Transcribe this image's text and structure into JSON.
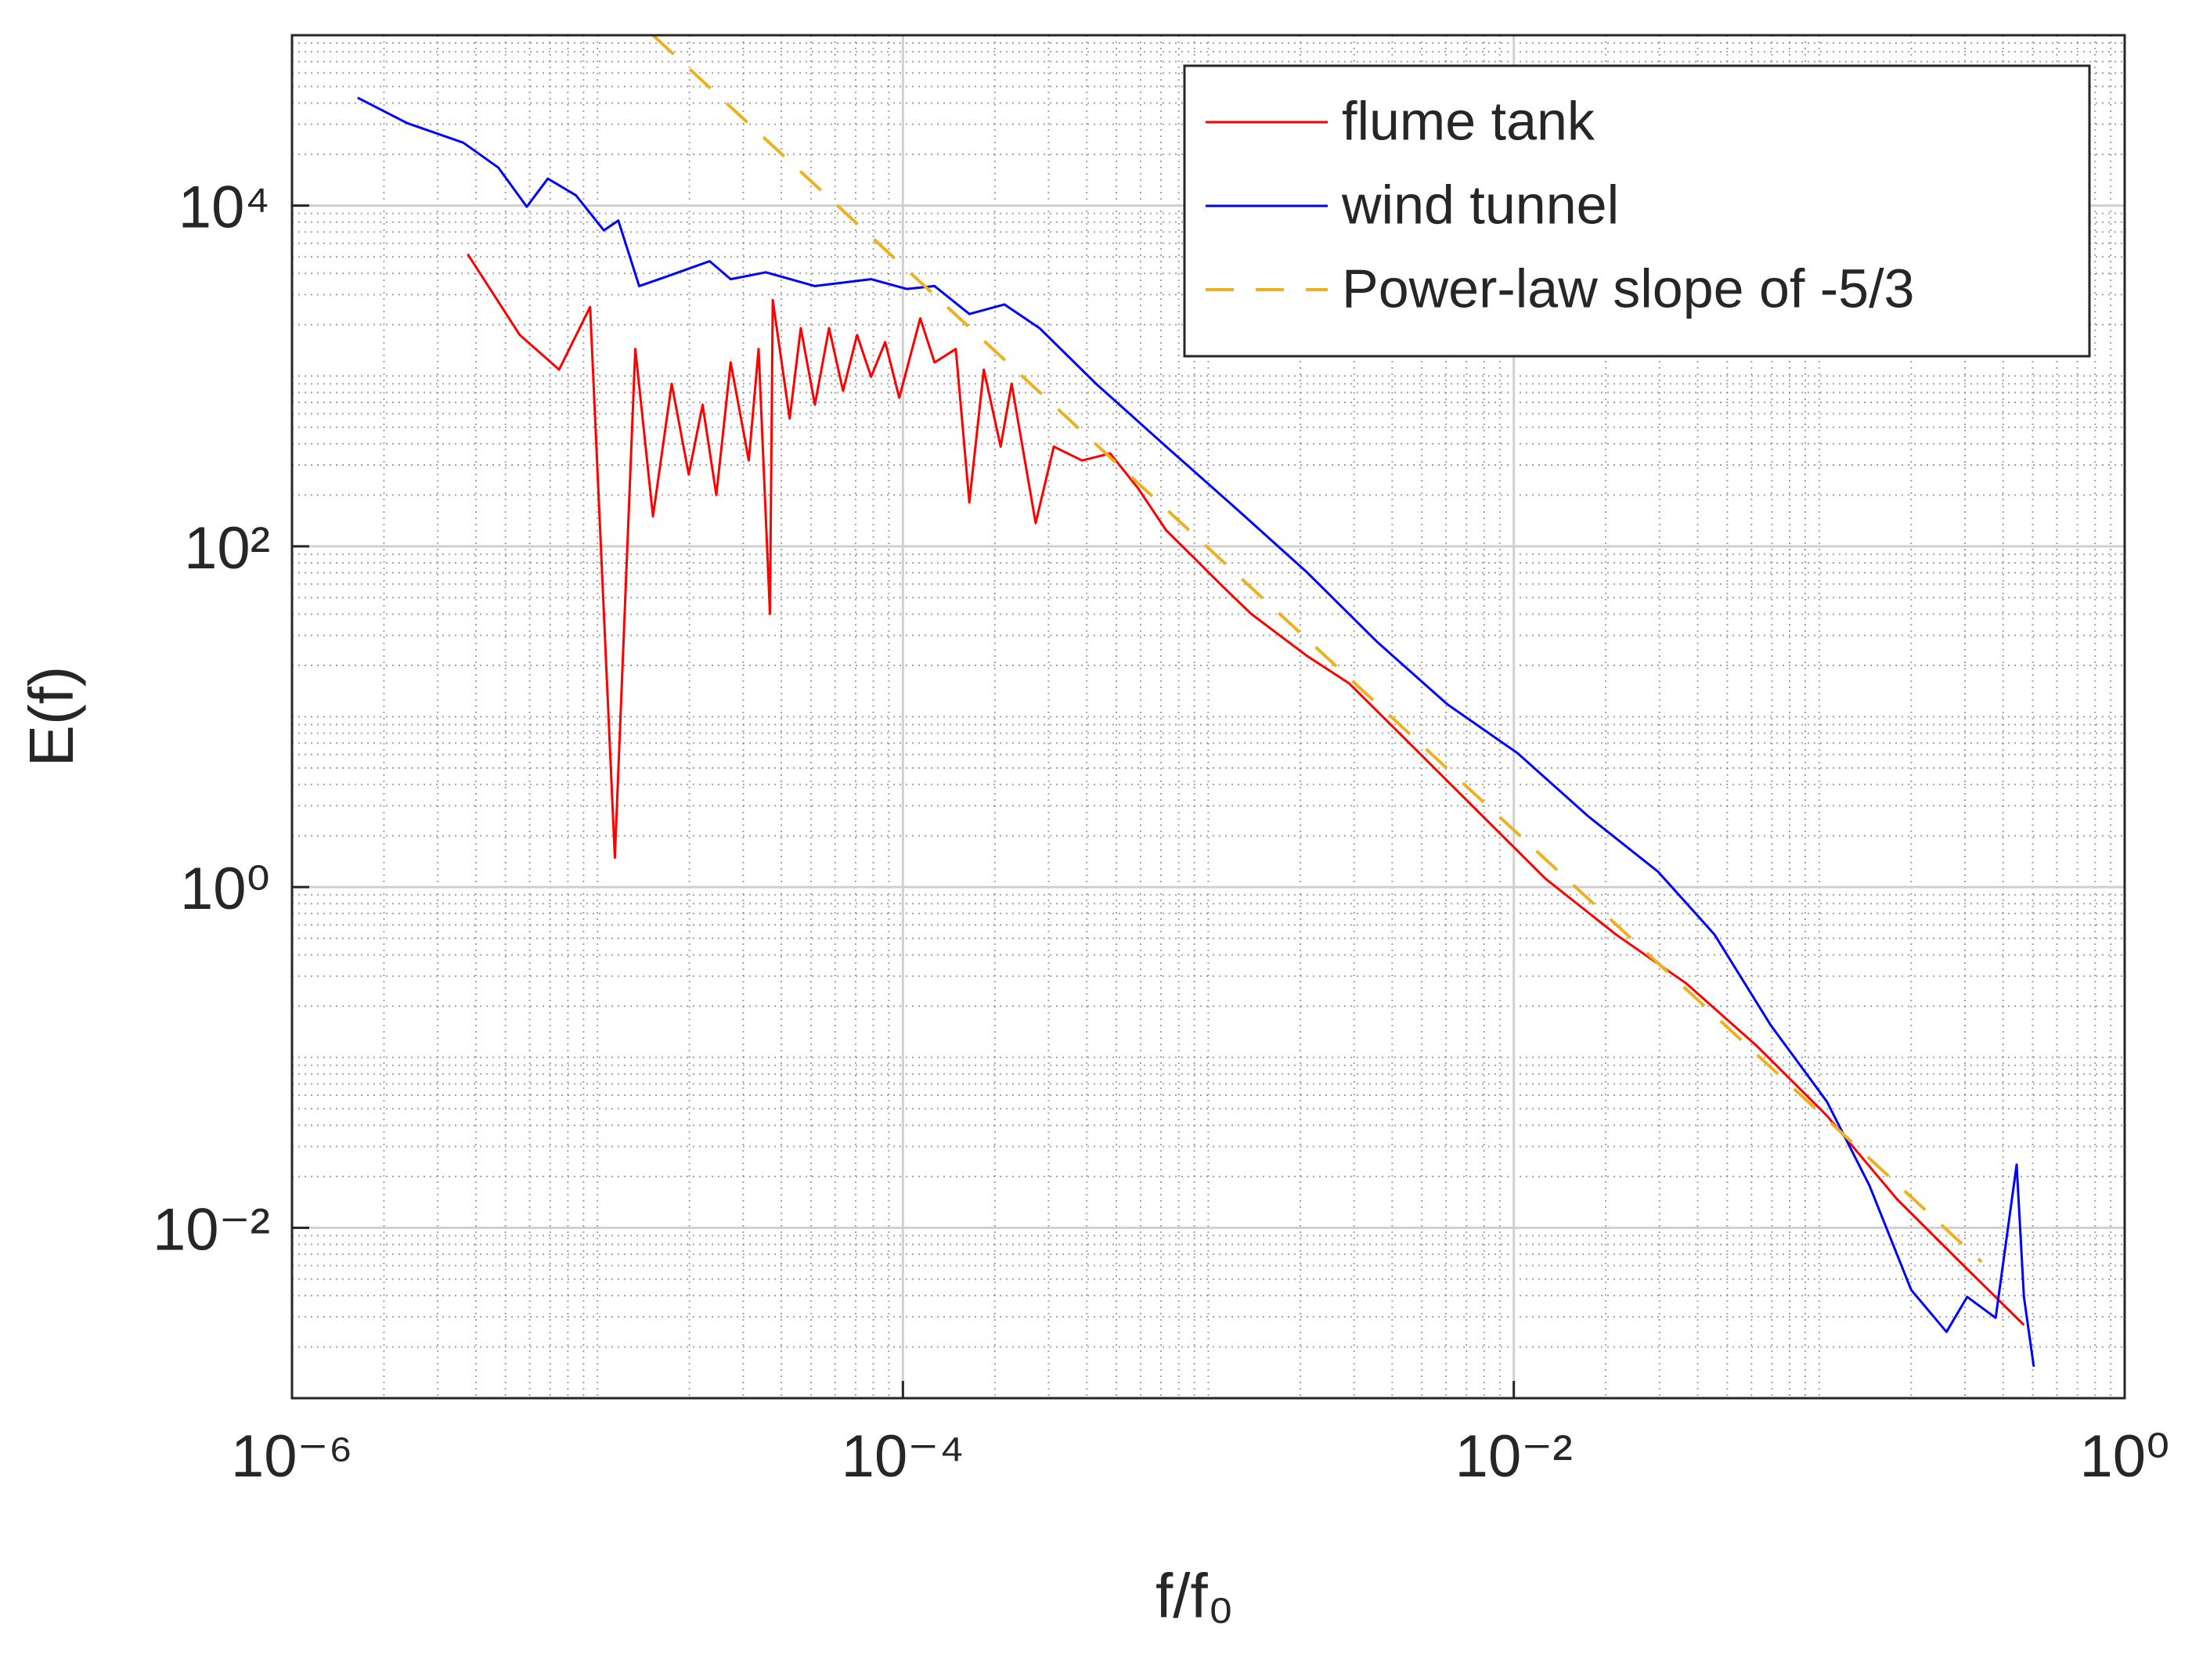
{
  "chart_data": {
    "type": "line",
    "xlabel": "f/f₀",
    "ylabel": "E(f)",
    "xscale": "log",
    "yscale": "log",
    "grid": true,
    "minor_grid": true,
    "legend_position": "upper right",
    "xlim": [
      1e-06,
      1
    ],
    "ylim": [
      0.001,
      100000
    ],
    "xticks": [
      {
        "value": 1e-06,
        "label": "10⁻⁶"
      },
      {
        "value": 0.0001,
        "label": "10⁻⁴"
      },
      {
        "value": 0.01,
        "label": "10⁻²"
      },
      {
        "value": 1,
        "label": "10⁰"
      }
    ],
    "yticks": [
      {
        "value": 0.01,
        "label": "10⁻²"
      },
      {
        "value": 1,
        "label": "10⁰"
      },
      {
        "value": 100,
        "label": "10²"
      },
      {
        "value": 10000,
        "label": "10⁴"
      }
    ],
    "series": [
      {
        "name": "flume tank",
        "color": "#ff0000",
        "dash": false,
        "x": [
          3.76e-06,
          5.57e-06,
          7.49e-06,
          9.46e-06,
          1.14e-05,
          1.33e-05,
          1.52e-05,
          1.75e-05,
          1.99e-05,
          2.21e-05,
          2.45e-05,
          2.73e-05,
          3.13e-05,
          3.37e-05,
          3.67e-05,
          3.75e-05,
          4.26e-05,
          4.63e-05,
          5.15e-05,
          5.73e-05,
          6.37e-05,
          7.08e-05,
          7.87e-05,
          8.75e-05,
          9.73e-05,
          0.000114,
          0.000127,
          0.000149,
          0.000165,
          0.000184,
          0.000209,
          0.000227,
          0.000272,
          0.000312,
          0.000386,
          0.000477,
          0.000589,
          0.000728,
          0.0009,
          0.00111,
          0.00138,
          0.0017,
          0.0021,
          0.00289,
          0.00442,
          0.0075,
          0.0127,
          0.0216,
          0.0367,
          0.0624,
          0.106,
          0.18,
          0.305,
          0.468
        ],
        "values": [
          5190,
          1740,
          1090,
          2540,
          1.49,
          1440,
          150,
          900,
          264,
          678,
          200,
          1200,
          319,
          1440,
          40.2,
          2790,
          562,
          1910,
          678,
          1910,
          818,
          1740,
          989,
          1580,
          745,
          2180,
          1200,
          1440,
          181,
          1090,
          385,
          900,
          137,
          385,
          319,
          351,
          219,
          124,
          85.3,
          58.6,
          40.2,
          30.3,
          22.8,
          15.7,
          7.37,
          2.87,
          1.12,
          0.527,
          0.272,
          0.117,
          0.0455,
          0.0147,
          0.00573,
          0.00269
        ]
      },
      {
        "name": "wind tunnel",
        "color": "#0000ff",
        "dash": false,
        "x": [
          1.64e-06,
          2.38e-06,
          3.64e-06,
          4.74e-06,
          5.87e-06,
          6.88e-06,
          8.5e-06,
          1.05e-05,
          1.17e-05,
          1.37e-05,
          1.69e-05,
          2.33e-05,
          2.73e-05,
          3.56e-05,
          5.15e-05,
          7.87e-05,
          0.000103,
          0.000127,
          0.000165,
          0.000215,
          0.00028,
          0.000429,
          0.000728,
          0.00124,
          0.0021,
          0.00357,
          0.00607,
          0.0103,
          0.0175,
          0.0297,
          0.0454,
          0.0693,
          0.106,
          0.146,
          0.2,
          0.261,
          0.305,
          0.378,
          0.443,
          0.468,
          0.504
        ],
        "values": [
          43000,
          30500,
          23400,
          16700,
          9850,
          14400,
          11500,
          7150,
          8170,
          3370,
          3840,
          4720,
          3700,
          4060,
          3370,
          3700,
          3240,
          3370,
          2310,
          2630,
          1910,
          900,
          385,
          165,
          70.6,
          27.5,
          11.8,
          6.1,
          2.61,
          1.23,
          0.527,
          0.155,
          0.055,
          0.0177,
          0.00432,
          0.00245,
          0.00393,
          0.00296,
          0.0235,
          0.00393,
          0.00153
        ]
      },
      {
        "name": "Power-law slope of -5/3",
        "color": "#edb120",
        "dash": true,
        "x": [
          1.52e-05,
          0.34
        ],
        "values": [
          100000,
          0.0063
        ]
      }
    ]
  }
}
